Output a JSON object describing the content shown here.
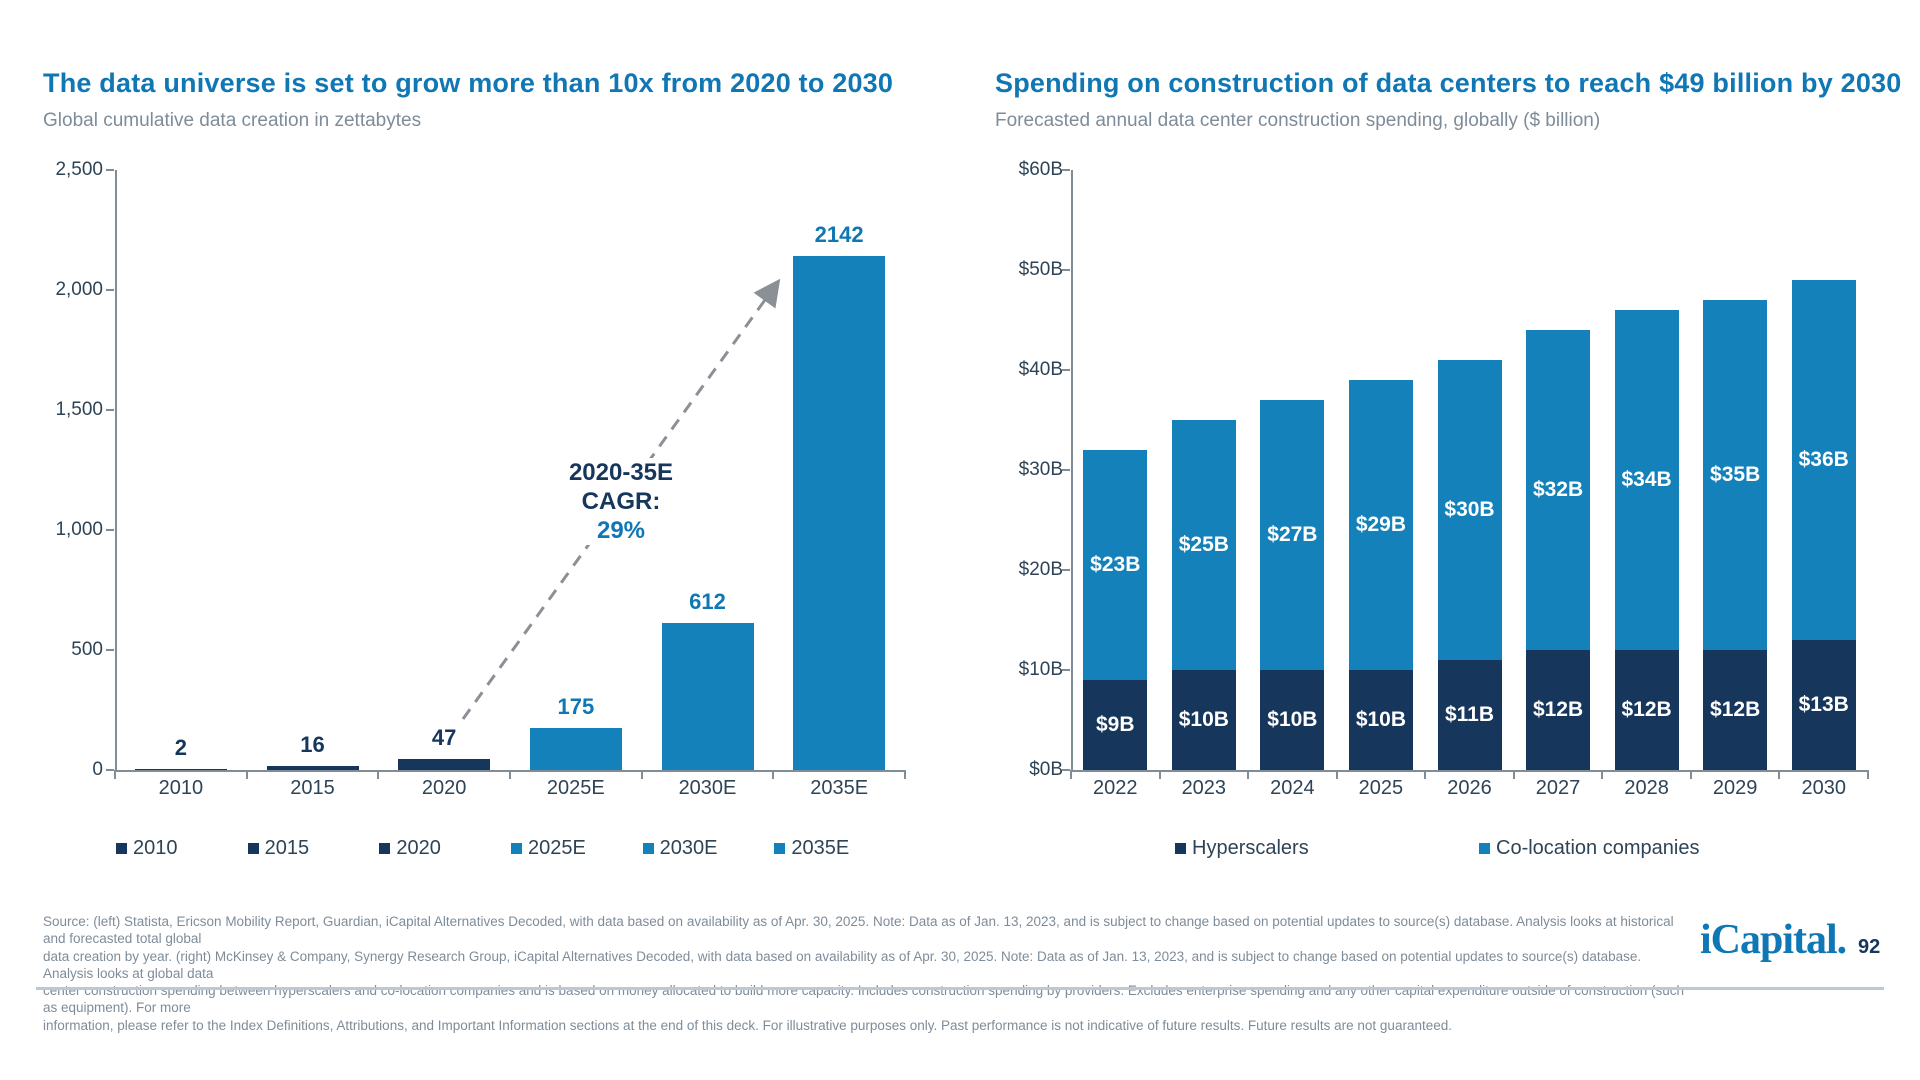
{
  "slide": {
    "colors": {
      "brand_blue": "#1077B5",
      "navy": "#16365C",
      "light_blue": "#1581BA",
      "axis_gray": "#808C96",
      "axis_text": "#2E4456",
      "footer_gray": "#7E8C99",
      "arrow_gray": "#8A9096"
    },
    "footer": {
      "source_lines": [
        "Source: (left) Statista, Ericson Mobility Report, Guardian, iCapital Alternatives Decoded, with data based on availability as of Apr. 30, 2025. Note: Data as of Jan. 13, 2023, and is subject to change based on potential updates to source(s) database. Analysis looks at historical and forecasted total global",
        "data creation by year. (right) McKinsey & Company, Synergy Research Group, iCapital Alternatives Decoded, with data based on availability as of Apr. 30, 2025. Note: Data as of Jan. 13, 2023, and is subject to change based on potential updates to source(s) database. Analysis looks at global data",
        "center construction spending between hyperscalers and co-location companies and is based on money allocated to build more capacity. Includes construction spending by providers. Excludes enterprise spending and any other capital expenditure outside of construction (such as equipment). For more",
        "information, please refer to the Index Definitions, Attributions, and Important Information sections at the end of this deck. For illustrative purposes only. Past performance is not indicative of future results. Future results are not guaranteed."
      ],
      "logo_text": "iCapital.",
      "page_number": "92"
    }
  },
  "chart_data": [
    {
      "id": "data-universe",
      "type": "bar",
      "title": "The data universe is set to grow more than 10x from 2020 to 2030",
      "subtitle": "Global cumulative data creation in zettabytes",
      "categories": [
        "2010",
        "2015",
        "2020",
        "2025E",
        "2030E",
        "2035E"
      ],
      "values": [
        2,
        16,
        47,
        175,
        612,
        2142
      ],
      "value_labels": [
        "2",
        "16",
        "47",
        "175",
        "612",
        "2142"
      ],
      "bar_styles": [
        "dark",
        "dark",
        "dark",
        "light",
        "light",
        "light"
      ],
      "ylim": [
        0,
        2500
      ],
      "yticks": [
        {
          "v": 0,
          "label": "0"
        },
        {
          "v": 500,
          "label": "500"
        },
        {
          "v": 1000,
          "label": "1,000"
        },
        {
          "v": 1500,
          "label": "1,500"
        },
        {
          "v": 2000,
          "label": "2,000"
        },
        {
          "v": 2500,
          "label": "2,500"
        }
      ],
      "legend": [
        "2010",
        "2015",
        "2020",
        "2025E",
        "2030E",
        "2035E"
      ],
      "legend_position": "bottom",
      "grid": false,
      "annotation_lines": [
        "2020-35E",
        "CAGR:",
        "29%"
      ]
    },
    {
      "id": "dc-construction-spending",
      "type": "stacked-bar",
      "title": "Spending on construction of data centers to reach $49 billion by 2030",
      "subtitle": "Forecasted annual data center construction spending, globally ($ billion)",
      "categories": [
        "2022",
        "2023",
        "2024",
        "2025",
        "2026",
        "2027",
        "2028",
        "2029",
        "2030"
      ],
      "series": [
        {
          "name": "Hyperscalers",
          "values": [
            9,
            10,
            10,
            10,
            11,
            12,
            12,
            12,
            13
          ],
          "labels": [
            "$9B",
            "$10B",
            "$10B",
            "$10B",
            "$11B",
            "$12B",
            "$12B",
            "$12B",
            "$13B"
          ]
        },
        {
          "name": "Co-location companies",
          "values": [
            23,
            25,
            27,
            29,
            30,
            32,
            34,
            35,
            36
          ],
          "labels": [
            "$23B",
            "$25B",
            "$27B",
            "$29B",
            "$30B",
            "$32B",
            "$34B",
            "$35B",
            "$36B"
          ]
        }
      ],
      "ylim": [
        0,
        60
      ],
      "yticks": [
        {
          "v": 0,
          "label": "$0B"
        },
        {
          "v": 10,
          "label": "$10B"
        },
        {
          "v": 20,
          "label": "$20B"
        },
        {
          "v": 30,
          "label": "$30B"
        },
        {
          "v": 40,
          "label": "$40B"
        },
        {
          "v": 50,
          "label": "$50B"
        },
        {
          "v": 60,
          "label": "$60B"
        }
      ],
      "legend_position": "bottom",
      "grid": false
    }
  ]
}
